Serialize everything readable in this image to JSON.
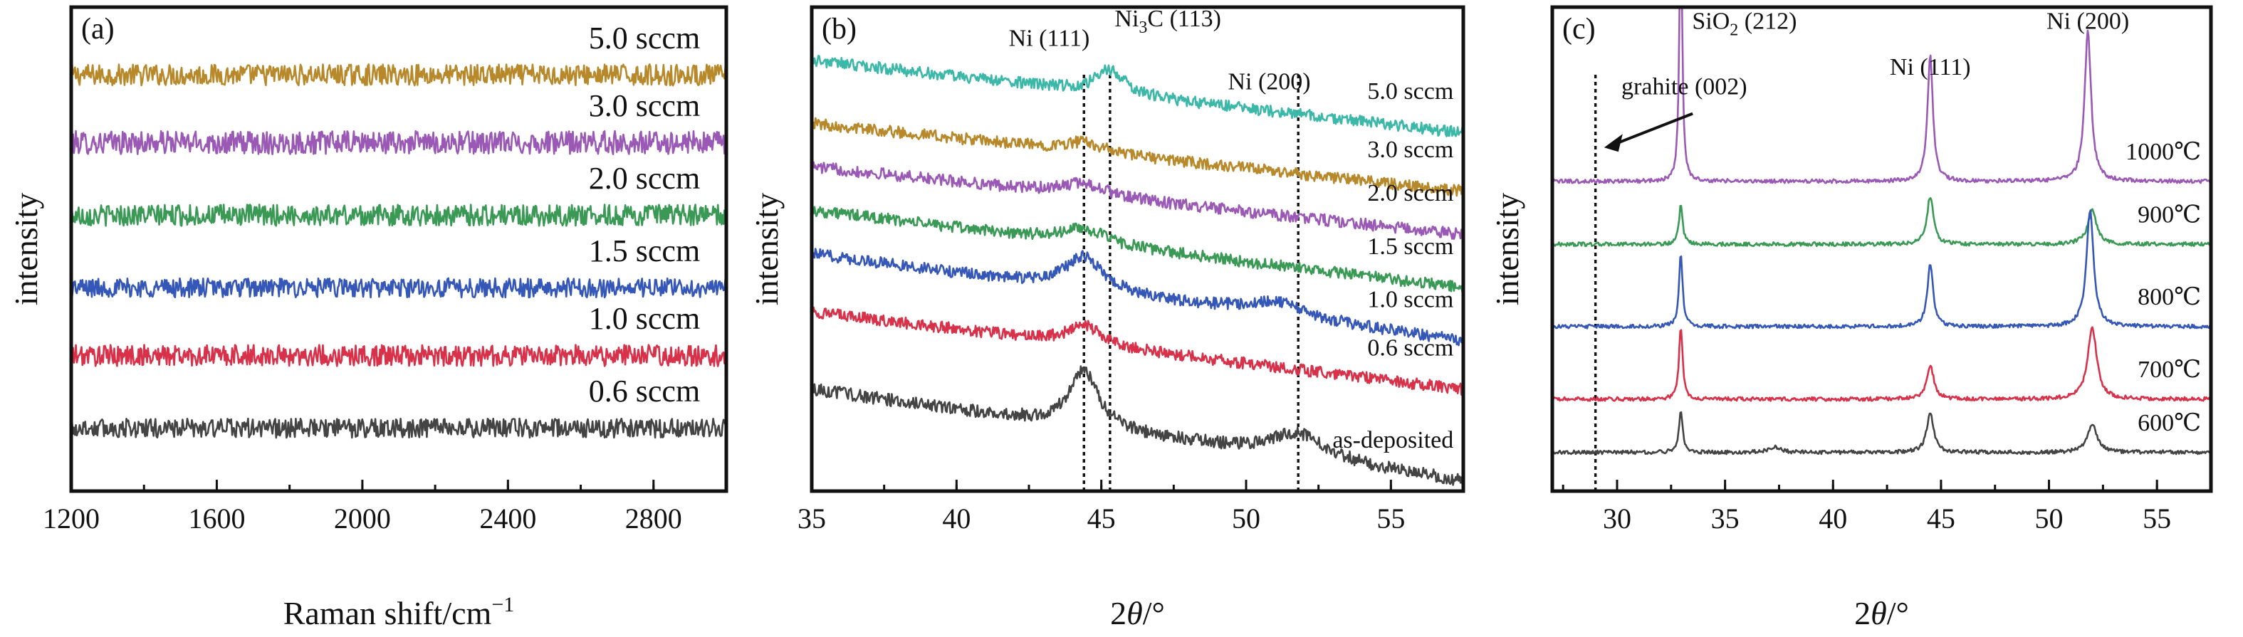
{
  "chart_data": [
    {
      "panel": "(a)",
      "type": "line",
      "xlabel": "Raman shift/cm",
      "xlabel_sup": "−1",
      "ylabel": "intensity",
      "xlim": [
        1200,
        3000
      ],
      "xticks": [
        "1200",
        "1600",
        "2000",
        "2400",
        "2800"
      ],
      "series": [
        {
          "name": "5.0 sccm",
          "color": "#b8892a",
          "level": 0.86,
          "noise": 0.022,
          "peaks": []
        },
        {
          "name": "3.0 sccm",
          "color": "#9b59b6",
          "level": 0.72,
          "noise": 0.024,
          "peaks": []
        },
        {
          "name": "2.0 sccm",
          "color": "#3a9a55",
          "level": 0.57,
          "noise": 0.022,
          "peaks": []
        },
        {
          "name": "1.5 sccm",
          "color": "#3557b7",
          "level": 0.42,
          "noise": 0.02,
          "peaks": []
        },
        {
          "name": "1.0 sccm",
          "color": "#d8314a",
          "level": 0.28,
          "noise": 0.022,
          "peaks": []
        },
        {
          "name": "0.6 sccm",
          "color": "#444444",
          "level": 0.13,
          "noise": 0.02,
          "peaks": []
        }
      ]
    },
    {
      "panel": "(b)",
      "type": "line",
      "xlabel": "2θ/°",
      "ylabel": "intensity",
      "xlim": [
        35,
        57.5
      ],
      "xticks": [
        "35",
        "40",
        "45",
        "50",
        "55"
      ],
      "reference_lines": [
        44.4,
        45.3,
        51.8
      ],
      "peak_labels": [
        {
          "text": "Ni (111)",
          "x": 43.2,
          "y": 0.92
        },
        {
          "text": "Ni",
          "sub": "3",
          "rest": "C (113)",
          "x": 47.3,
          "y": 0.96
        },
        {
          "text": "Ni (200)",
          "x": 50.8,
          "y": 0.83
        }
      ],
      "series": [
        {
          "name": "5.0 sccm",
          "color": "#3bb8a8",
          "start": 0.89,
          "end": 0.74,
          "noise": 0.012,
          "peaks": [
            [
              45.3,
              0.05,
              0.6
            ]
          ]
        },
        {
          "name": "3.0 sccm",
          "color": "#b8892a",
          "start": 0.76,
          "end": 0.62,
          "noise": 0.012,
          "peaks": [
            [
              44.4,
              0.02,
              0.8
            ]
          ]
        },
        {
          "name": "2.0 sccm",
          "color": "#9b59b6",
          "start": 0.67,
          "end": 0.53,
          "noise": 0.012,
          "peaks": [
            [
              44.4,
              0.025,
              0.9
            ]
          ]
        },
        {
          "name": "1.5 sccm",
          "color": "#3a9a55",
          "start": 0.58,
          "end": 0.42,
          "noise": 0.012,
          "peaks": [
            [
              44.4,
              0.03,
              0.9
            ]
          ]
        },
        {
          "name": "1.0 sccm",
          "color": "#3557b7",
          "start": 0.49,
          "end": 0.31,
          "noise": 0.012,
          "peaks": [
            [
              44.4,
              0.07,
              0.8
            ],
            [
              51.0,
              0.03,
              1.2
            ]
          ]
        },
        {
          "name": "0.6 sccm",
          "color": "#d8314a",
          "start": 0.37,
          "end": 0.21,
          "noise": 0.012,
          "peaks": [
            [
              44.4,
              0.04,
              0.7
            ]
          ]
        },
        {
          "name": "as-deposited",
          "color": "#444444",
          "start": 0.21,
          "end": 0.02,
          "noise": 0.013,
          "peaks": [
            [
              44.4,
              0.12,
              0.6
            ],
            [
              51.8,
              0.05,
              1.2
            ]
          ]
        }
      ]
    },
    {
      "panel": "(c)",
      "type": "line",
      "xlabel": "2θ/°",
      "ylabel": "intensity",
      "xlim": [
        27,
        57.5
      ],
      "xticks": [
        "30",
        "35",
        "40",
        "45",
        "50",
        "55"
      ],
      "reference_lines": [
        29.0
      ],
      "annotation": {
        "text": "grahite (002)",
        "arrow_from": [
          33.5,
          0.78
        ],
        "arrow_to": [
          29.4,
          0.71
        ],
        "text_x": 30.2,
        "text_y": 0.82
      },
      "peak_labels": [
        {
          "text": "SiO",
          "sub": "2",
          "rest": " (212)",
          "x": 35.9,
          "y": 0.955
        },
        {
          "text": "Ni (111)",
          "x": 44.5,
          "y": 0.86
        },
        {
          "text": "Ni (200)",
          "x": 51.8,
          "y": 0.955
        }
      ],
      "series": [
        {
          "name": "1000℃",
          "color": "#9b59b6",
          "level": 0.64,
          "noise": 0.004,
          "peaks": [
            [
              32.95,
              0.55,
              0.08
            ],
            [
              44.5,
              0.26,
              0.15
            ],
            [
              51.8,
              0.31,
              0.18
            ]
          ]
        },
        {
          "name": "900℃",
          "color": "#3a9a55",
          "level": 0.51,
          "noise": 0.004,
          "peaks": [
            [
              32.95,
              0.08,
              0.1
            ],
            [
              44.5,
              0.1,
              0.18
            ],
            [
              52.0,
              0.07,
              0.25
            ]
          ]
        },
        {
          "name": "800℃",
          "color": "#3557b7",
          "level": 0.34,
          "noise": 0.004,
          "peaks": [
            [
              32.95,
              0.15,
              0.1
            ],
            [
              44.5,
              0.13,
              0.16
            ],
            [
              51.9,
              0.24,
              0.2
            ]
          ]
        },
        {
          "name": "700℃",
          "color": "#d8314a",
          "level": 0.19,
          "noise": 0.004,
          "peaks": [
            [
              32.95,
              0.15,
              0.1
            ],
            [
              44.5,
              0.07,
              0.2
            ],
            [
              52.0,
              0.15,
              0.25
            ]
          ]
        },
        {
          "name": "600℃",
          "color": "#444444",
          "level": 0.08,
          "noise": 0.004,
          "peaks": [
            [
              32.95,
              0.09,
              0.1
            ],
            [
              37.3,
              0.012,
              0.3
            ],
            [
              44.5,
              0.08,
              0.2
            ],
            [
              52.0,
              0.06,
              0.25
            ]
          ]
        }
      ]
    }
  ]
}
